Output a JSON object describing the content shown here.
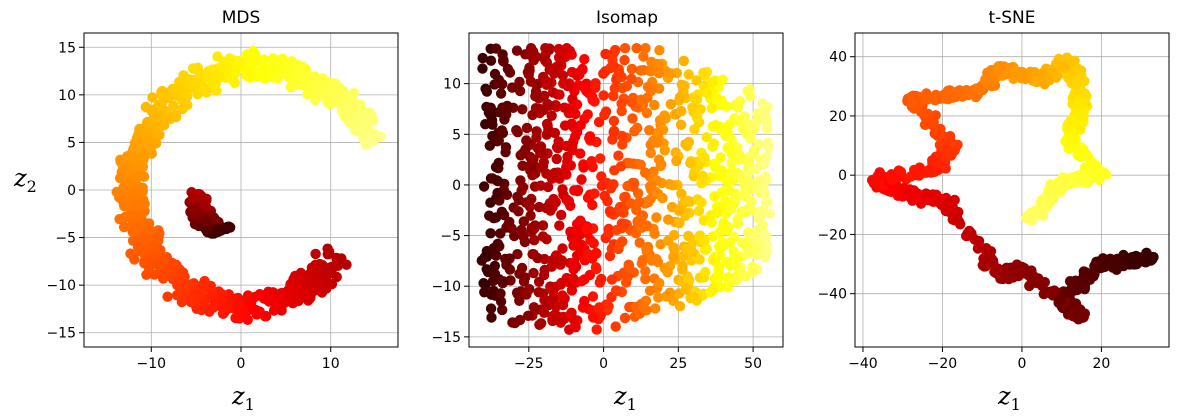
{
  "chart_data": [
    {
      "type": "scatter",
      "title": "MDS",
      "xlabel": "z",
      "xlabel_sub": "1",
      "ylabel": "z",
      "ylabel_sub": "2",
      "xlim": [
        -17.5,
        17.5
      ],
      "ylim": [
        -16.5,
        16.5
      ],
      "xticks": [
        -10,
        0,
        10
      ],
      "xtick_labels": [
        "−10",
        "0",
        "10"
      ],
      "yticks": [
        -15,
        -10,
        -5,
        0,
        5,
        10,
        15
      ],
      "ytick_labels": [
        "−15",
        "−10",
        "−5",
        "0",
        "5",
        "10",
        "15"
      ],
      "grid": true,
      "colormap": "hot",
      "description_of_shape": "annular ring of points radius ~7-16 with inner dark spiral arm centered near (0,-3)"
    },
    {
      "type": "scatter",
      "title": "Isomap",
      "xlabel": "z",
      "xlabel_sub": "1",
      "ylabel": "",
      "xlim": [
        -45,
        60
      ],
      "ylim": [
        -16,
        15
      ],
      "xticks": [
        -25,
        0,
        25,
        50
      ],
      "xtick_labels": [
        "−25",
        "0",
        "25",
        "50"
      ],
      "yticks": [
        -15,
        -10,
        -5,
        0,
        5,
        10
      ],
      "ytick_labels": [
        "−15",
        "−10",
        "−5",
        "0",
        "5",
        "10"
      ],
      "grid": true,
      "colormap": "hot"
    },
    {
      "type": "scatter",
      "title": "t-SNE",
      "xlabel": "z",
      "xlabel_sub": "1",
      "ylabel": "",
      "xlim": [
        -42,
        37
      ],
      "ylim": [
        -58,
        48
      ],
      "xticks": [
        -40,
        -20,
        0,
        20
      ],
      "xtick_labels": [
        "−40",
        "−20",
        "0",
        "20"
      ],
      "yticks": [
        -40,
        -20,
        0,
        20,
        40
      ],
      "ytick_labels": [
        "−40",
        "−20",
        "0",
        "20",
        "40"
      ],
      "grid": true,
      "colormap": "hot"
    }
  ]
}
